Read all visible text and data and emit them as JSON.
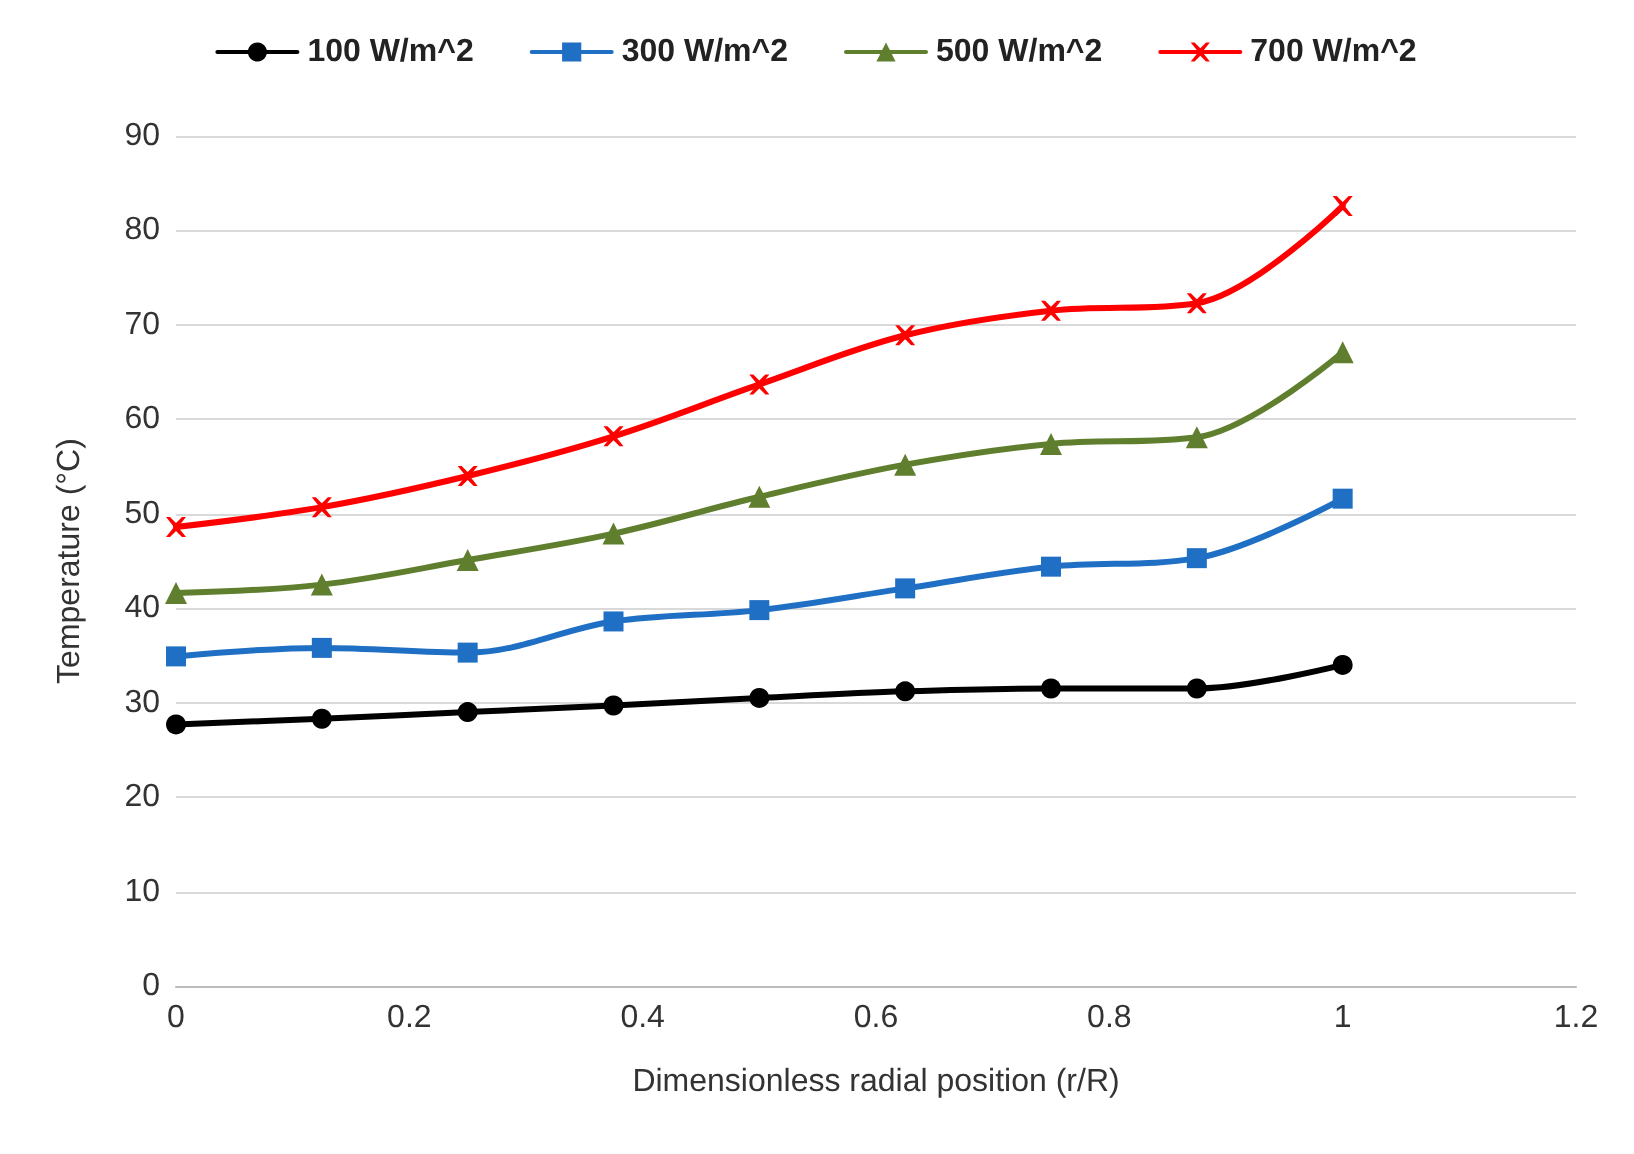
{
  "chart_data": {
    "type": "line",
    "xlabel": "Dimensionless radial position (r/R)",
    "ylabel": "Temperature (°C)",
    "xlim": [
      0,
      1.2
    ],
    "xticks": [
      0,
      0.2,
      0.4,
      0.6,
      0.8,
      1,
      1.2
    ],
    "ylim": [
      0,
      90
    ],
    "yticks": [
      0,
      10,
      20,
      30,
      40,
      50,
      60,
      70,
      80,
      90
    ],
    "grid": "y",
    "legend": "top",
    "line_style": "solid",
    "series": [
      {
        "name": "100 W/m^2",
        "color": "#000000",
        "marker": "circle",
        "x": [
          0,
          0.125,
          0.25,
          0.375,
          0.5,
          0.625,
          0.75,
          0.875,
          1
        ],
        "values": [
          27.7,
          28.3,
          29,
          29.7,
          30.5,
          31.2,
          31.5,
          31.5,
          34
        ]
      },
      {
        "name": "300 W/m^2",
        "color": "#1f6fc4",
        "marker": "square",
        "x": [
          0,
          0.125,
          0.25,
          0.375,
          0.5,
          0.625,
          0.75,
          0.875,
          1
        ],
        "values": [
          34.9,
          35.8,
          35.3,
          38.6,
          39.8,
          42.1,
          44.4,
          45.3,
          51.6
        ]
      },
      {
        "name": "500 W/m^2",
        "color": "#5f7f2e",
        "marker": "triangle",
        "x": [
          0,
          0.125,
          0.25,
          0.375,
          0.5,
          0.625,
          0.75,
          0.875,
          1
        ],
        "values": [
          41.6,
          42.5,
          45.1,
          47.9,
          51.8,
          55.2,
          57.4,
          58.1,
          67.1
        ]
      },
      {
        "name": "700 W/m^2",
        "color": "#ff0000",
        "marker": "cross",
        "x": [
          0,
          0.125,
          0.25,
          0.375,
          0.5,
          0.625,
          0.75,
          0.875,
          1
        ],
        "values": [
          48.6,
          50.7,
          54,
          58.2,
          63.7,
          68.9,
          71.5,
          72.3,
          82.6
        ]
      }
    ]
  }
}
